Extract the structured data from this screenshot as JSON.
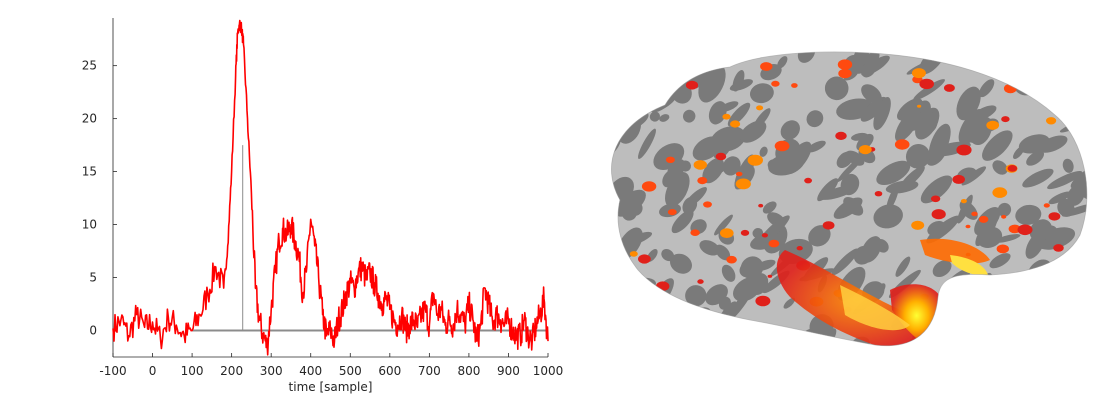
{
  "chart_data": {
    "type": "line",
    "title": "",
    "xlabel": "time [sample]",
    "ylabel": "",
    "xlim": [
      -100,
      1000
    ],
    "ylim": [
      -2.5,
      29.5
    ],
    "xticks": [
      -100,
      0,
      100,
      200,
      300,
      400,
      500,
      600,
      700,
      800,
      900,
      1000
    ],
    "yticks": [
      0,
      5,
      10,
      15,
      20,
      25
    ],
    "grid": false,
    "series": [
      {
        "color": "#ff0000",
        "x": [
          -100,
          -80,
          -60,
          -40,
          -20,
          0,
          20,
          40,
          60,
          80,
          100,
          120,
          140,
          160,
          180,
          190,
          200,
          210,
          215,
          220,
          225,
          230,
          240,
          250,
          260,
          270,
          280,
          290,
          300,
          310,
          320,
          330,
          340,
          350,
          360,
          370,
          380,
          390,
          400,
          410,
          420,
          430,
          440,
          450,
          460,
          470,
          480,
          490,
          500,
          510,
          520,
          530,
          540,
          550,
          560,
          570,
          580,
          590,
          600,
          610,
          620,
          630,
          640,
          650,
          660,
          670,
          680,
          690,
          700,
          710,
          720,
          730,
          740,
          750,
          760,
          770,
          780,
          790,
          800,
          810,
          820,
          830,
          840,
          850,
          860,
          870,
          880,
          890,
          900,
          910,
          920,
          930,
          940,
          950,
          960,
          970,
          980,
          990,
          1000
        ],
        "y": [
          0.2,
          1.0,
          -0.5,
          1.5,
          0.3,
          0.8,
          -0.8,
          1.2,
          0.5,
          -0.5,
          0.0,
          1.5,
          3.5,
          6.0,
          4.0,
          8.0,
          15.0,
          24.0,
          28.0,
          29.0,
          28.5,
          27.0,
          20.0,
          13.0,
          4.0,
          1.0,
          -0.5,
          -1.5,
          2.0,
          5.5,
          8.5,
          9.5,
          9.0,
          10.0,
          8.5,
          7.0,
          3.5,
          6.0,
          10.5,
          8.0,
          5.0,
          1.5,
          -0.5,
          0.0,
          -1.0,
          1.0,
          2.0,
          3.5,
          4.5,
          4.0,
          5.5,
          6.0,
          4.8,
          5.5,
          4.5,
          3.5,
          2.5,
          3.0,
          2.0,
          1.0,
          0.5,
          1.5,
          0.0,
          0.5,
          1.0,
          0.3,
          1.5,
          2.0,
          0.5,
          3.5,
          1.5,
          2.0,
          0.5,
          1.0,
          0.5,
          2.0,
          1.5,
          0.5,
          2.5,
          1.0,
          -1.0,
          0.5,
          4.0,
          2.5,
          0.8,
          1.5,
          1.0,
          0.5,
          1.0,
          0.0,
          -0.5,
          -0.5,
          1.0,
          -0.5,
          -1.0,
          0.5,
          1.5,
          3.0,
          -1.0
        ]
      },
      {
        "color": "#8c8c8c",
        "x": [
          100,
          1000
        ],
        "y": [
          0,
          0
        ]
      }
    ],
    "markers": [
      {
        "color": "#8c8c8c",
        "x": 228,
        "y_from": 0,
        "y_to": 17.5
      }
    ]
  },
  "brain_image": {
    "description_icon": "inflated-cortical-surface",
    "colors": {
      "sulcus": "#7a7a7a",
      "gyrus": "#c8c8c8",
      "activation_low": "#e0201a",
      "activation_mid": "#ff8a00",
      "activation_high": "#ffff33"
    }
  }
}
